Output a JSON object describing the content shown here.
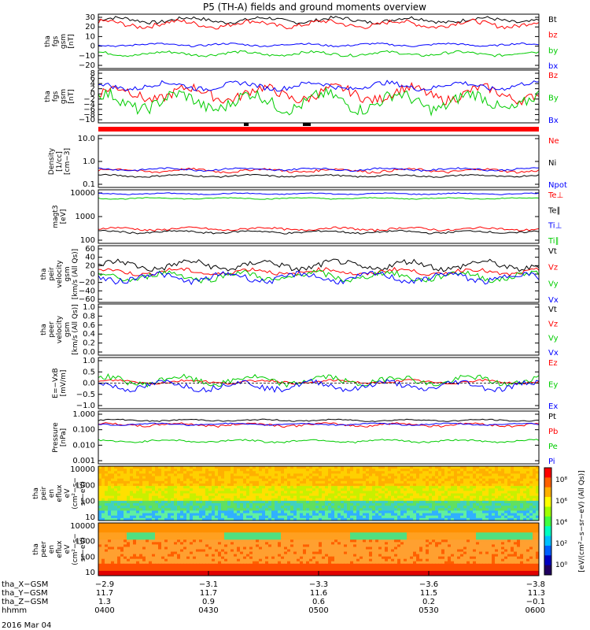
{
  "title": "P5 (TH-A) fields and ground moments overview",
  "date": "2016 Mar 04",
  "colors": {
    "black": "#000000",
    "red": "#ff0000",
    "green": "#00cc00",
    "blue": "#0000ff",
    "lightgreen": "#33ff33"
  },
  "chart_data": [
    {
      "id": "panel1",
      "type": "line",
      "ylabel_lines": [
        "tha",
        "fgs",
        "gsm",
        "[nT]"
      ],
      "yticks": [
        "30",
        "20",
        "10",
        "0",
        "−10",
        "−20"
      ],
      "ylim": [
        -25,
        30
      ],
      "series": [
        {
          "name": "Bt",
          "color": "black",
          "level": 24,
          "amp": 4
        },
        {
          "name": "bz",
          "color": "red",
          "level": 20,
          "amp": 5
        },
        {
          "name": "by",
          "color": "green",
          "level": -10,
          "amp": 3
        },
        {
          "name": "bx",
          "color": "blue",
          "level": -1,
          "amp": 2
        }
      ]
    },
    {
      "id": "panel2",
      "type": "line",
      "ylabel_lines": [
        "tha",
        "fgs",
        "gsm",
        "[nT]"
      ],
      "yticks": [
        "8",
        "6",
        "4",
        "2",
        "0",
        "−2",
        "−4",
        "−6",
        "−8",
        "−10"
      ],
      "ylim": [
        -11,
        9
      ],
      "series": [
        {
          "name": "Bz",
          "color": "red",
          "level": 0,
          "amp": 4
        },
        {
          "name": "By",
          "color": "green",
          "level": -3,
          "amp": 5
        },
        {
          "name": "Bx",
          "color": "blue",
          "level": 3,
          "amp": 2
        }
      ]
    },
    {
      "id": "panel3",
      "type": "line",
      "log": true,
      "ylabel_lines": [
        "Density",
        "[1/cc]",
        "[cm−3]"
      ],
      "yticks": [
        "10.0",
        "1.0",
        "0.1"
      ],
      "ylim": [
        0.1,
        10
      ],
      "series": [
        {
          "name": "Ne",
          "color": "red",
          "level": 0.45,
          "amp": 0.1
        },
        {
          "name": "Ni",
          "color": "black",
          "level": 0.28,
          "amp": 0.04
        },
        {
          "name": "Npot",
          "color": "blue",
          "level": 0.5,
          "amp": 0.08
        }
      ]
    },
    {
      "id": "panel4",
      "type": "line",
      "log": true,
      "ylabel_lines": [
        "magt3",
        "[eV]"
      ],
      "yticks": [
        "10000",
        "1000",
        "100"
      ],
      "ylim": [
        50,
        12000
      ],
      "series": [
        {
          "name": "Te⊥",
          "color": "red",
          "level": 220,
          "amp": 50
        },
        {
          "name": "Te∥",
          "color": "black",
          "level": 160,
          "amp": 30
        },
        {
          "name": "Ti⊥",
          "color": "blue",
          "level": 8000,
          "amp": 800
        },
        {
          "name": "Ti∥",
          "color": "green",
          "level": 5000,
          "amp": 500
        }
      ]
    },
    {
      "id": "panel5",
      "type": "line",
      "ylabel_lines": [
        "tha",
        "peir",
        "velocity",
        "gsm",
        "[km/s (All Qs)]"
      ],
      "yticks": [
        "60",
        "40",
        "20",
        "0",
        "−20",
        "−40",
        "−60"
      ],
      "ylim": [
        -65,
        65
      ],
      "series": [
        {
          "name": "Vt",
          "color": "black",
          "level": 20,
          "amp": 15
        },
        {
          "name": "Vz",
          "color": "red",
          "level": 5,
          "amp": 10
        },
        {
          "name": "Vy",
          "color": "green",
          "level": -5,
          "amp": 15
        },
        {
          "name": "Vx",
          "color": "blue",
          "level": -8,
          "amp": 15
        }
      ]
    },
    {
      "id": "panel6",
      "type": "line",
      "ylabel_lines": [
        "tha",
        "peer",
        "velocity",
        "gsm",
        "[km/s (All Qs)]"
      ],
      "yticks": [
        "1.0",
        "0.8",
        "0.6",
        "0.4",
        "0.2",
        "0.0"
      ],
      "ylim": [
        0,
        1
      ],
      "series": [
        {
          "name": "Vt",
          "color": "black"
        },
        {
          "name": "Vz",
          "color": "red"
        },
        {
          "name": "Vy",
          "color": "green"
        },
        {
          "name": "Vx",
          "color": "blue"
        }
      ]
    },
    {
      "id": "panel7",
      "type": "line",
      "ylabel_lines": [
        "E=−VxB",
        "[mV/m]"
      ],
      "yticks": [
        "1.0",
        "0.5",
        "0.0",
        "−0.5",
        "−1.0"
      ],
      "ylim": [
        -1,
        1
      ],
      "series": [
        {
          "name": "Ez",
          "color": "red",
          "level": 0.05,
          "amp": 0.1
        },
        {
          "name": "Ey",
          "color": "green",
          "level": 0.1,
          "amp": 0.25
        },
        {
          "name": "Ex",
          "color": "blue",
          "level": -0.1,
          "amp": 0.25
        }
      ]
    },
    {
      "id": "panel8",
      "type": "line",
      "log": true,
      "ylabel_lines": [
        "Pressure",
        "[nPa]"
      ],
      "yticks": [
        "1.000",
        "0.100",
        "0.010",
        "0.001"
      ],
      "ylim": [
        0.001,
        1
      ],
      "series": [
        {
          "name": "Pt",
          "color": "black",
          "level": 0.3,
          "amp": 0.05
        },
        {
          "name": "Pb",
          "color": "red",
          "level": 0.17,
          "amp": 0.05
        },
        {
          "name": "Pe",
          "color": "green",
          "level": 0.02,
          "amp": 0.005
        },
        {
          "name": "Pi",
          "color": "blue",
          "level": 0.18,
          "amp": 0.03
        }
      ]
    },
    {
      "id": "spec1",
      "type": "heatmap",
      "ylabel_lines": [
        "tha",
        "peir",
        "en",
        "eflux",
        "eV",
        "(cm²−s−",
        "sr−eV)"
      ],
      "yticks": [
        "10000",
        "1000",
        "100",
        "10"
      ]
    },
    {
      "id": "spec2",
      "type": "heatmap",
      "ylabel_lines": [
        "tha",
        "peer",
        "en",
        "eflux",
        "eV",
        "(cm²−s−",
        "sr−eV)"
      ],
      "yticks": [
        "10000",
        "1000",
        "100",
        "10"
      ]
    }
  ],
  "colorbar": {
    "label": "[eV/(cm²−s−sr−eV) (All Qs)]",
    "ticks": [
      "10⁸",
      "10⁶",
      "10⁴",
      "10²",
      "10⁰"
    ]
  },
  "ephemeris": {
    "row_labels": [
      "tha_X−GSM",
      "tha_Y−GSM",
      "tha_Z−GSM",
      "hhmm"
    ],
    "columns": [
      [
        "−2.9",
        "11.7",
        "1.3",
        "0400"
      ],
      [
        "−3.1",
        "11.7",
        "0.9",
        "0430"
      ],
      [
        "−3.3",
        "11.6",
        "0.6",
        "0500"
      ],
      [
        "−3.6",
        "11.5",
        "0.2",
        "0530"
      ],
      [
        "−3.8",
        "11.3",
        "−0.1",
        "0600"
      ]
    ]
  }
}
